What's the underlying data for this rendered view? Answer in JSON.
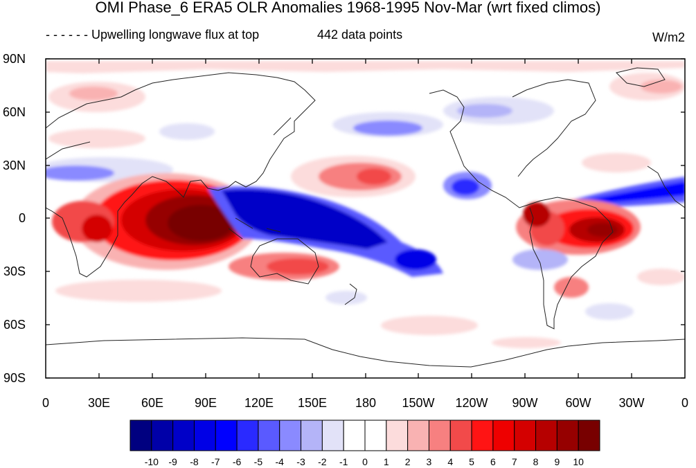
{
  "title": "OMI Phase_6 ERA5 OLR Anomalies 1968-1995 Nov-Mar (wrt fixed climos)",
  "subtitle_left": "- - - - - - Upwelling longwave flux at top",
  "subtitle_count": "442 data points",
  "units": "W/m2",
  "y_ticks": [
    "90N",
    "60N",
    "30N",
    "0",
    "30S",
    "60S",
    "90S"
  ],
  "x_ticks": [
    "0",
    "30E",
    "60E",
    "90E",
    "120E",
    "150E",
    "180",
    "150W",
    "120W",
    "90W",
    "60W",
    "30W",
    "0"
  ],
  "colorbar": {
    "labels": [
      "-10",
      "-9",
      "-8",
      "-7",
      "-6",
      "-5",
      "-4",
      "-3",
      "-2",
      "-1",
      "0",
      "1",
      "2",
      "3",
      "4",
      "5",
      "6",
      "7",
      "8",
      "9",
      "10"
    ],
    "colors": [
      "#000080",
      "#0000a8",
      "#0000c8",
      "#0000e6",
      "#0000ff",
      "#2a2aff",
      "#5a5aff",
      "#8a8aff",
      "#b4b4f8",
      "#e2e2f8",
      "#ffffff",
      "#ffffff",
      "#fcdcdc",
      "#f9b2b2",
      "#f78080",
      "#f24a4a",
      "#ff1414",
      "#ee0000",
      "#d40000",
      "#b60000",
      "#960000",
      "#780000"
    ]
  }
}
